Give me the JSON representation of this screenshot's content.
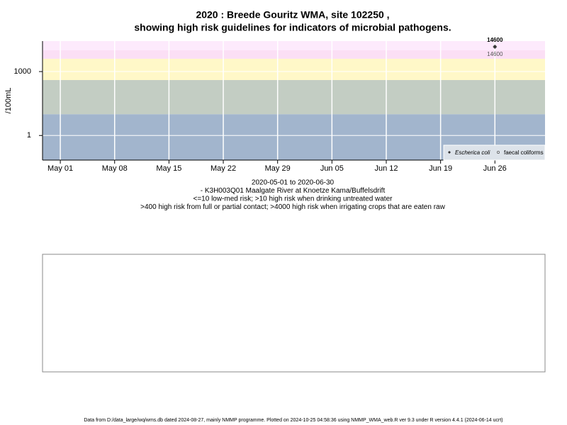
{
  "chart_data": {
    "type": "scatter",
    "title": [
      "2020 : Breede Gouritz WMA, site 102250 ,",
      "showing high risk guidelines for indicators of microbial pathogens."
    ],
    "y_label": "/100mL",
    "log_y": true,
    "ylim": [
      0.07,
      27000
    ],
    "yticks": [
      1,
      1000
    ],
    "xlim": [
      "2020-04-28T17:00",
      "2020-07-02T11:00"
    ],
    "xticks": [
      {
        "value": "2020-05-01",
        "label": "May 01"
      },
      {
        "value": "2020-05-08",
        "label": "May 08"
      },
      {
        "value": "2020-05-15",
        "label": "May 15"
      },
      {
        "value": "2020-05-22",
        "label": "May 22"
      },
      {
        "value": "2020-05-29",
        "label": "May 29"
      },
      {
        "value": "2020-06-05",
        "label": "Jun 05"
      },
      {
        "value": "2020-06-12",
        "label": "Jun 12"
      },
      {
        "value": "2020-06-19",
        "label": "Jun 19"
      },
      {
        "value": "2020-06-26",
        "label": "Jun 26"
      }
    ],
    "grid": true,
    "bands": [
      {
        "max": 10,
        "color": "#a2b5cd"
      },
      {
        "max": 400,
        "color": "#c3cdc3"
      },
      {
        "max": 4000,
        "color": "#fff8c8"
      },
      {
        "max": 10000,
        "color": "#fbdff5"
      },
      {
        "color": "#fdeafc"
      }
    ],
    "x": [
      "2020-06-26"
    ],
    "series": [
      {
        "name": "Escherica coli",
        "color": "#333333",
        "values": [
          14600
        ],
        "value_labels": [
          "14600"
        ]
      },
      {
        "name": "faecal coliforms",
        "color": "#555555",
        "values": [
          14600
        ],
        "value_labels": [
          "14600"
        ]
      }
    ],
    "legend": "bottom-right",
    "notes": [
      "2020-05-01 to 2020-06-30",
      "- K3H003Q01 Maalgate River at Knoetze Kama/Buffelsdrift",
      "<=10 low-med risk; >10 high risk when drinking untreated water",
      ">400 high risk from full or partial contact; >4000 high risk when irrigating crops that are eaten raw"
    ],
    "footer": "Data from D:/data_large/wq/wms.db dated 2024-08-27, mainly NMMP programme. Plotted on 2024-10-25 04:58:36 using NMMP_WMA_web.R ver 9.3 under R version 4.4.1 (2024-06-14 ucrt)"
  }
}
